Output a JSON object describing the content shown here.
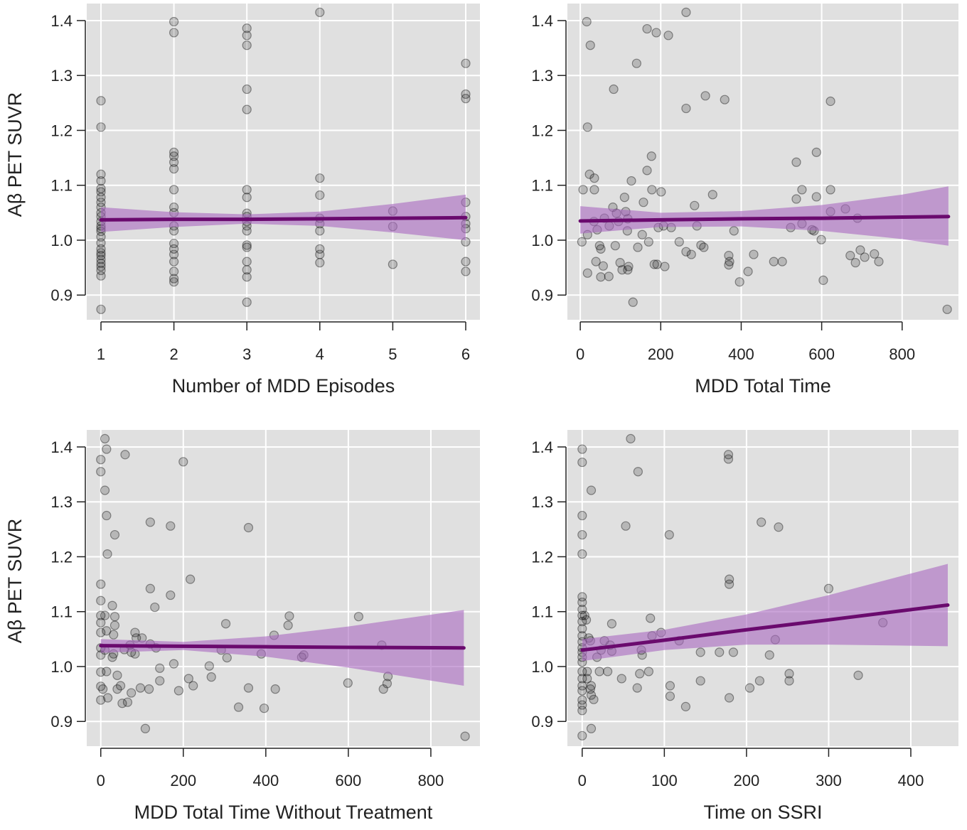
{
  "chart_data": [
    {
      "type": "scatter",
      "xlabel": "Number of MDD Episodes",
      "ylabel": "Aβ PET SUVR",
      "xlim": [
        0.805,
        6.195
      ],
      "ylim": [
        0.855,
        1.431
      ],
      "xticks": [
        1,
        2,
        3,
        4,
        5,
        6
      ],
      "yticks": [
        0.9,
        {
          "value": 1,
          "label": "1.0"
        },
        1.1,
        1.2,
        1.3,
        1.4
      ],
      "grid": true,
      "point_color": "#000000",
      "line_color": "#6a0a6e",
      "band_color": "#a868bf",
      "x": [
        1,
        1,
        1,
        1,
        1,
        1,
        1,
        1,
        1,
        1,
        1,
        1,
        1,
        1,
        1,
        1,
        1,
        1,
        1,
        1,
        1,
        1,
        1,
        1,
        1,
        1,
        2,
        2,
        2,
        2,
        2,
        2,
        2,
        2,
        2,
        2,
        2,
        2,
        2,
        2,
        2,
        2,
        2,
        2,
        3,
        3,
        3,
        3,
        3,
        3,
        3,
        3,
        3,
        3,
        3,
        3,
        3,
        3,
        3,
        3,
        3,
        3,
        4,
        4,
        4,
        4,
        4,
        4,
        4,
        4,
        4,
        5,
        5,
        5,
        6,
        6,
        6,
        6,
        6,
        6,
        6,
        6,
        6,
        6
      ],
      "y": [
        1.254,
        1.206,
        1.12,
        1.108,
        1.094,
        1.088,
        1.078,
        1.069,
        1.06,
        1.05,
        1.043,
        1.034,
        1.026,
        1.021,
        1.016,
        1.006,
        0.995,
        0.984,
        0.977,
        0.972,
        0.965,
        0.958,
        0.952,
        0.945,
        0.935,
        0.874,
        1.398,
        1.378,
        1.16,
        1.153,
        1.142,
        1.13,
        1.092,
        1.06,
        1.05,
        1.026,
        1.017,
        0.994,
        0.984,
        0.974,
        0.961,
        0.943,
        0.93,
        0.924,
        1.386,
        1.373,
        1.355,
        1.275,
        1.238,
        1.092,
        1.078,
        1.049,
        1.043,
        1.034,
        1.026,
        1.017,
        0.991,
        0.987,
        0.961,
        0.946,
        0.933,
        0.887,
        1.415,
        1.113,
        1.082,
        1.04,
        1.03,
        1.017,
        0.984,
        0.974,
        0.959,
        1.053,
        1.025,
        0.956,
        1.322,
        1.266,
        1.258,
        1.069,
        1.043,
        1.03,
        1.021,
        0.997,
        0.961,
        0.943
      ],
      "fit": {
        "x": [
          1,
          2,
          3,
          4,
          5,
          6
        ],
        "y": [
          1.037,
          1.038,
          1.038,
          1.039,
          1.04,
          1.041
        ],
        "lower": [
          1.015,
          1.024,
          1.03,
          1.026,
          1.014,
          1.0
        ],
        "upper": [
          1.06,
          1.051,
          1.047,
          1.052,
          1.066,
          1.083
        ]
      }
    },
    {
      "type": "scatter",
      "xlabel": "MDD Total Time",
      "xlim": [
        -32,
        940
      ],
      "ylim": [
        0.855,
        1.431
      ],
      "xticks": [
        0,
        200,
        400,
        600,
        800
      ],
      "yticks": [
        0.9,
        {
          "value": 1,
          "label": "1.0"
        },
        1.1,
        1.2,
        1.3,
        1.4
      ],
      "grid": true,
      "point_color": "#000000",
      "line_color": "#6a0a6e",
      "band_color": "#a868bf",
      "x": [
        16,
        25,
        18,
        23,
        35,
        7,
        35,
        4,
        18,
        18,
        34,
        42,
        48,
        51,
        39,
        57,
        51,
        71,
        60,
        72,
        81,
        83,
        90,
        95,
        87,
        99,
        110,
        113,
        118,
        117,
        104,
        118,
        120,
        127,
        131,
        140,
        143,
        154,
        157,
        166,
        166,
        170,
        177,
        178,
        184,
        189,
        191,
        194,
        201,
        207,
        210,
        219,
        226,
        246,
        263,
        263,
        263,
        276,
        284,
        290,
        300,
        307,
        311,
        329,
        359,
        369,
        371,
        369,
        382,
        396,
        417,
        431,
        481,
        502,
        523,
        537,
        537,
        551,
        551,
        576,
        581,
        587,
        587,
        599,
        604,
        622,
        622,
        622,
        659,
        671,
        684,
        689,
        696,
        707,
        731,
        742,
        912
      ],
      "y": [
        1.398,
        1.355,
        1.206,
        1.12,
        1.113,
        1.092,
        1.092,
        0.997,
        1.01,
        0.94,
        1.034,
        1.019,
        0.99,
        0.984,
        0.961,
        0.953,
        0.933,
        0.934,
        1.04,
        1.026,
        1.06,
        1.275,
        1.049,
        1.034,
        0.99,
        0.959,
        1.078,
        1.052,
        1.039,
        1.017,
        0.946,
        0.946,
        0.952,
        1.108,
        0.887,
        1.322,
        0.987,
        1.01,
        1.069,
        1.127,
        1.385,
        0.997,
        1.153,
        1.092,
        0.956,
        1.378,
        0.956,
        1.023,
        1.088,
        1.026,
        0.952,
        1.373,
        1.023,
        0.997,
        1.415,
        1.24,
        0.979,
        0.974,
        1.063,
        1.026,
        0.991,
        0.987,
        1.263,
        1.083,
        1.256,
        0.972,
        0.961,
        0.955,
        1.017,
        0.924,
        0.943,
        0.974,
        0.961,
        0.961,
        1.023,
        1.142,
        1.075,
        1.092,
        1.03,
        1.019,
        1.017,
        1.16,
        1.079,
        1.001,
        0.927,
        1.253,
        1.092,
        1.052,
        1.057,
        0.972,
        0.959,
        1.04,
        0.982,
        0.969,
        0.975,
        0.961,
        0.874
      ],
      "fit": {
        "x": [
          0,
          200,
          400,
          600,
          800,
          915
        ],
        "y": [
          1.035,
          1.037,
          1.039,
          1.04,
          1.042,
          1.043
        ],
        "lower": [
          1.012,
          1.024,
          1.025,
          1.017,
          1.002,
          0.99
        ],
        "upper": [
          1.062,
          1.05,
          1.053,
          1.064,
          1.083,
          1.098
        ]
      }
    },
    {
      "type": "scatter",
      "xlabel": "MDD Total Time Without Treatment",
      "ylabel": "Aβ PET SUVR",
      "xlim": [
        -34,
        919
      ],
      "ylim": [
        0.855,
        1.431
      ],
      "xticks": [
        0,
        200,
        400,
        600,
        800
      ],
      "yticks": [
        0.9,
        {
          "value": 1,
          "label": "1.0"
        },
        1.1,
        1.2,
        1.3,
        1.4
      ],
      "grid": true,
      "point_color": "#000000",
      "line_color": "#6a0a6e",
      "band_color": "#a868bf",
      "x": [
        0,
        0,
        10,
        14,
        10,
        14,
        16,
        59,
        34,
        0,
        0,
        0,
        0,
        0,
        0,
        0,
        0,
        0,
        0,
        10,
        14,
        10,
        14,
        17,
        5,
        28,
        34,
        34,
        31,
        31,
        28,
        40,
        40,
        48,
        52,
        65,
        57,
        71,
        74,
        83,
        86,
        83,
        74,
        96,
        100,
        108,
        117,
        120,
        120,
        120,
        131,
        134,
        143,
        143,
        169,
        169,
        177,
        189,
        200,
        213,
        217,
        224,
        263,
        268,
        292,
        303,
        306,
        334,
        358,
        358,
        389,
        396,
        420,
        423,
        454,
        457,
        487,
        492,
        599,
        625,
        681,
        685,
        694,
        696,
        883
      ],
      "y": [
        1.377,
        1.355,
        1.415,
        1.396,
        1.321,
        1.275,
        1.205,
        1.386,
        1.24,
        1.15,
        1.12,
        1.093,
        1.08,
        1.062,
        1.034,
        1.021,
        0.99,
        0.964,
        0.939,
        1.093,
        1.065,
        1.03,
        0.991,
        0.943,
        0.959,
        1.111,
        1.091,
        1.075,
        1.058,
        1.023,
        1.017,
        0.984,
        0.959,
        0.965,
        0.933,
        0.935,
        1.031,
        1.039,
        1.026,
        1.062,
        1.052,
        1.023,
        0.952,
        0.961,
        1.052,
        0.887,
        0.959,
        1.142,
        1.263,
        1.041,
        1.108,
        1.034,
        0.997,
        0.974,
        1.13,
        1.256,
        1.005,
        0.956,
        1.373,
        0.978,
        1.159,
        0.965,
        1.001,
        0.981,
        1.03,
        1.078,
        1.016,
        0.926,
        1.253,
        0.961,
        1.023,
        0.924,
        1.057,
        0.959,
        1.075,
        1.092,
        1.017,
        1.021,
        0.97,
        1.091,
        1.039,
        0.959,
        0.969,
        0.982,
        0.873
      ],
      "fit": {
        "x": [
          0,
          200,
          400,
          600,
          880
        ],
        "y": [
          1.038,
          1.037,
          1.036,
          1.035,
          1.034
        ],
        "lower": [
          1.025,
          1.03,
          1.018,
          0.998,
          0.965
        ],
        "upper": [
          1.05,
          1.045,
          1.055,
          1.073,
          1.103
        ]
      }
    },
    {
      "type": "scatter",
      "xlabel": "Time on SSRI",
      "xlim": [
        -18,
        458
      ],
      "ylim": [
        0.855,
        1.431
      ],
      "xticks": [
        0,
        100,
        200,
        300,
        400
      ],
      "yticks": [
        0.9,
        {
          "value": 1,
          "label": "1.0"
        },
        1.1,
        1.2,
        1.3,
        1.4
      ],
      "grid": true,
      "point_color": "#000000",
      "line_color": "#6a0a6e",
      "band_color": "#a868bf",
      "x": [
        0,
        0,
        0,
        0,
        0,
        0,
        0,
        0,
        0,
        0,
        0,
        0,
        0,
        0,
        0,
        0,
        0,
        0,
        0,
        0,
        0,
        0,
        0,
        0,
        0,
        3,
        5,
        6,
        6,
        8,
        10,
        10,
        11,
        11,
        11,
        14,
        11,
        21,
        23,
        18,
        27,
        34,
        36,
        36,
        31,
        48,
        59,
        68,
        53,
        67,
        70,
        72,
        73,
        81,
        83,
        85,
        96,
        106,
        107,
        107,
        126,
        118,
        144,
        144,
        167,
        178,
        178,
        179,
        179,
        179,
        184,
        204,
        216,
        218,
        228,
        235,
        239,
        252,
        252,
        300,
        336,
        366
      ],
      "y": [
        1.396,
        1.372,
        1.275,
        1.205,
        1.127,
        1.117,
        1.104,
        1.093,
        1.082,
        1.069,
        1.056,
        1.045,
        1.034,
        1.026,
        1.017,
        1.008,
        0.991,
        0.978,
        0.965,
        0.956,
        0.939,
        0.93,
        0.92,
        0.874,
        1.24,
        1.093,
        1.085,
        0.978,
        0.991,
        1.052,
        1.047,
        0.959,
        0.887,
        1.321,
        0.948,
        0.94,
        0.965,
        0.991,
        1.03,
        1.017,
        1.047,
        1.039,
        1.078,
        1.028,
        0.991,
        0.978,
        1.415,
        1.355,
        1.256,
        0.961,
        0.987,
        1.03,
        1.021,
        0.991,
        1.088,
        1.056,
        1.062,
        1.24,
        0.965,
        0.946,
        0.927,
        1.047,
        0.974,
        1.026,
        1.026,
        1.386,
        1.378,
        1.159,
        1.15,
        0.943,
        1.026,
        0.961,
        0.974,
        1.263,
        1.021,
        1.049,
        1.254,
        0.987,
        0.974,
        1.142,
        0.984,
        1.08
      ],
      "fit": {
        "x": [
          0,
          100,
          200,
          300,
          445
        ],
        "y": [
          1.03,
          1.048,
          1.067,
          1.085,
          1.112
        ],
        "lower": [
          1.01,
          1.03,
          1.04,
          1.04,
          1.037
        ],
        "upper": [
          1.05,
          1.067,
          1.095,
          1.13,
          1.187
        ]
      }
    }
  ]
}
